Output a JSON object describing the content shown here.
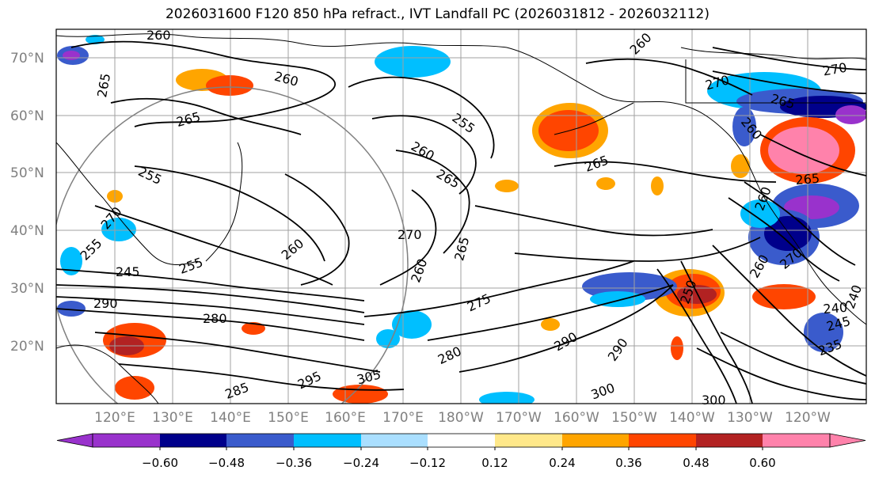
{
  "title": "2026031600 F120 850 hPa refract., IVT Landfall PC (2026031812 - 2026032112)",
  "lat_labels": [
    "70°N",
    "60°N",
    "50°N",
    "40°N",
    "30°N",
    "20°N"
  ],
  "lon_labels": [
    "120°E",
    "130°E",
    "140°E",
    "150°E",
    "160°E",
    "170°E",
    "180°W",
    "170°W",
    "160°W",
    "150°W",
    "140°W",
    "130°W",
    "120°W"
  ],
  "contour_labels": [
    "260",
    "265",
    "260",
    "255",
    "265",
    "255",
    "260",
    "265",
    "265",
    "260",
    "270",
    "265",
    "260",
    "270",
    "265",
    "260",
    "260",
    "260",
    "265",
    "270",
    "255",
    "270",
    "255",
    "245",
    "290",
    "280",
    "250",
    "260",
    "270",
    "275",
    "280",
    "290",
    "290",
    "285",
    "295",
    "305",
    "300",
    "300",
    "235",
    "240",
    "245",
    "240"
  ],
  "colorbar": {
    "ticks": [
      "−0.60",
      "−0.48",
      "−0.36",
      "−0.24",
      "−0.12",
      "0.12",
      "0.24",
      "0.36",
      "0.48",
      "0.60"
    ],
    "colors": [
      "#9932cc",
      "#00008b",
      "#3a5bcc",
      "#00bfff",
      "#aadfff",
      "#ffffff",
      "#ffe88a",
      "#ffa500",
      "#ff4500",
      "#b22222",
      "#ff82ab"
    ]
  }
}
